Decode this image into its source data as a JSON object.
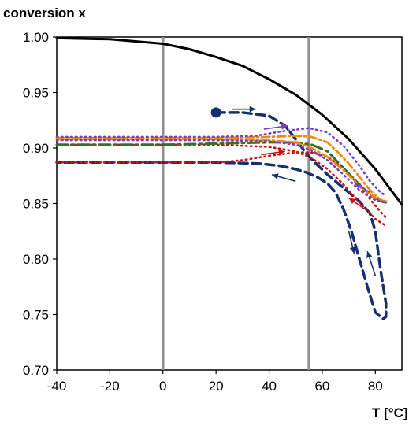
{
  "chart_data": {
    "type": "line",
    "ylabel": "conversion x",
    "xlabel": "T [°C]",
    "xlim": [
      -40,
      90
    ],
    "ylim": [
      0.7,
      1.0
    ],
    "xticks": [
      -40,
      -20,
      0,
      20,
      40,
      60,
      80
    ],
    "yticks": [
      0.7,
      0.75,
      0.8,
      0.85,
      0.9,
      0.95,
      1.0
    ],
    "xtick_labels": [
      "-40",
      "-20",
      "0",
      "20",
      "40",
      "60",
      "80"
    ],
    "ytick_labels": [
      "0.70",
      "0.75",
      "0.80",
      "0.85",
      "0.90",
      "0.95",
      "1.00"
    ],
    "grid": false,
    "vlines": [
      {
        "x": 0,
        "color": "#909090"
      },
      {
        "x": 55,
        "color": "#909090"
      }
    ],
    "series": [
      {
        "color": "#000000",
        "dash": "solid",
        "width": 3,
        "x": [
          -40,
          -20,
          0,
          10,
          20,
          30,
          40,
          50,
          60,
          70,
          80,
          90
        ],
        "y": [
          0.999,
          0.998,
          0.994,
          0.989,
          0.982,
          0.974,
          0.962,
          0.948,
          0.93,
          0.908,
          0.881,
          0.849
        ]
      },
      {
        "color": "#15316b",
        "dash": "dash",
        "width": 3.5,
        "start_marker": true,
        "x": [
          20,
          30,
          40,
          46,
          50,
          54,
          58,
          62,
          66,
          70,
          74,
          78,
          80,
          82,
          84,
          84,
          83,
          80,
          77,
          74,
          71,
          68,
          65,
          62,
          58,
          54,
          50,
          44,
          36,
          20,
          0,
          -20,
          -40
        ],
        "y": [
          0.932,
          0.932,
          0.929,
          0.92,
          0.908,
          0.895,
          0.885,
          0.876,
          0.868,
          0.86,
          0.852,
          0.841,
          0.825,
          0.79,
          0.76,
          0.748,
          0.746,
          0.752,
          0.775,
          0.8,
          0.825,
          0.845,
          0.86,
          0.868,
          0.874,
          0.878,
          0.881,
          0.884,
          0.886,
          0.887,
          0.887,
          0.887,
          0.887
        ]
      },
      {
        "color": "#cc1010",
        "dash": "dot",
        "width": 2.6,
        "x": [
          -40,
          0,
          20,
          30,
          40,
          50,
          56,
          62,
          68,
          74,
          80,
          84
        ],
        "y": [
          0.887,
          0.887,
          0.887,
          0.889,
          0.893,
          0.896,
          0.896,
          0.892,
          0.882,
          0.866,
          0.848,
          0.837
        ]
      },
      {
        "color": "#cc1010",
        "dash": "dot",
        "width": 2.6,
        "x": [
          -40,
          0,
          20,
          40,
          50,
          56,
          62,
          68,
          74,
          80,
          84
        ],
        "y": [
          0.903,
          0.903,
          0.903,
          0.901,
          0.897,
          0.891,
          0.881,
          0.867,
          0.851,
          0.836,
          0.83
        ]
      },
      {
        "color": "#ee8a10",
        "dash": "dashdot",
        "width": 2.8,
        "x": [
          -40,
          0,
          20,
          40,
          50,
          56,
          62,
          66,
          70,
          74,
          78,
          82,
          84
        ],
        "y": [
          0.909,
          0.909,
          0.909,
          0.91,
          0.911,
          0.91,
          0.905,
          0.896,
          0.886,
          0.874,
          0.862,
          0.853,
          0.852
        ]
      },
      {
        "color": "#3d6b2a",
        "dash": "longdashdot",
        "width": 3,
        "x": [
          -40,
          0,
          20,
          40,
          50,
          56,
          62,
          66,
          70,
          74,
          78,
          82,
          84
        ],
        "y": [
          0.903,
          0.903,
          0.904,
          0.905,
          0.905,
          0.903,
          0.897,
          0.887,
          0.877,
          0.867,
          0.858,
          0.852,
          0.851
        ]
      },
      {
        "color": "#7a3fc0",
        "dash": "dot",
        "width": 2.6,
        "x": [
          -40,
          0,
          20,
          35,
          45,
          55,
          62,
          68,
          74,
          78,
          82,
          84
        ],
        "y": [
          0.91,
          0.91,
          0.91,
          0.911,
          0.915,
          0.918,
          0.914,
          0.902,
          0.884,
          0.87,
          0.86,
          0.857
        ]
      },
      {
        "color": "#ee8a10",
        "dash": "dashdot",
        "width": 2.8,
        "x": [
          -40,
          0,
          20,
          40,
          50,
          56,
          62,
          68,
          74,
          80,
          84
        ],
        "y": [
          0.908,
          0.908,
          0.908,
          0.907,
          0.905,
          0.9,
          0.892,
          0.88,
          0.866,
          0.855,
          0.852
        ]
      },
      {
        "color": "#7a3fc0",
        "dash": "dot",
        "width": 2.6,
        "x": [
          -40,
          0,
          20,
          40,
          50,
          56,
          62,
          68,
          74,
          80,
          84
        ],
        "y": [
          0.907,
          0.907,
          0.907,
          0.906,
          0.903,
          0.898,
          0.889,
          0.876,
          0.862,
          0.853,
          0.851
        ]
      }
    ],
    "arrows": [
      {
        "color": "#15316b",
        "from": [
          26,
          0.935
        ],
        "to": [
          35,
          0.935
        ]
      },
      {
        "color": "#7a3fc0",
        "from": [
          38,
          0.917
        ],
        "to": [
          47,
          0.92
        ]
      },
      {
        "color": "#cc1010",
        "from": [
          37,
          0.894
        ],
        "to": [
          46,
          0.897
        ]
      },
      {
        "color": "#15316b",
        "from": [
          50,
          0.87
        ],
        "to": [
          41,
          0.876
        ]
      },
      {
        "color": "#15316b",
        "from": [
          70,
          0.825
        ],
        "to": [
          72,
          0.805
        ]
      },
      {
        "color": "#15316b",
        "from": [
          80,
          0.785
        ],
        "to": [
          77,
          0.807
        ]
      },
      {
        "color": "#7a3fc0",
        "from": [
          78,
          0.86
        ],
        "to": [
          72,
          0.869
        ]
      },
      {
        "color": "#cc1010",
        "from": [
          76,
          0.845
        ],
        "to": [
          70,
          0.855
        ]
      }
    ]
  }
}
